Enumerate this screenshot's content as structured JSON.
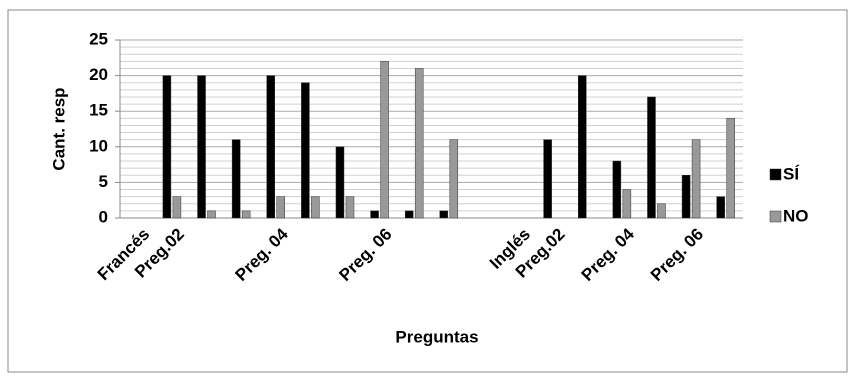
{
  "chart_data": {
    "type": "bar",
    "categories": [
      "Francés",
      "Preg.02",
      null,
      null,
      "Preg. 04",
      null,
      null,
      "Preg. 06",
      null,
      null,
      null,
      "Inglés",
      "Preg.02",
      null,
      "Preg. 04",
      null,
      "Preg. 06",
      null
    ],
    "series": [
      {
        "name": "SÍ",
        "color": "#000000",
        "values": [
          null,
          20,
          20,
          11,
          20,
          19,
          10,
          1,
          1,
          1,
          null,
          null,
          11,
          20,
          8,
          17,
          6,
          3
        ]
      },
      {
        "name": "NO",
        "color": "#999999",
        "values": [
          null,
          3,
          1,
          1,
          3,
          3,
          3,
          22,
          21,
          11,
          null,
          null,
          null,
          null,
          4,
          2,
          11,
          14
        ]
      }
    ],
    "ylim": [
      0,
      25
    ],
    "yticks": [
      0,
      5,
      10,
      15,
      20,
      25
    ],
    "y_minor_ticks": [
      1,
      2,
      3,
      4,
      6,
      7,
      8,
      9,
      11,
      12,
      13,
      14,
      16,
      17,
      18,
      19,
      21,
      22,
      23,
      24
    ],
    "grid": true,
    "xlabel": "Preguntas",
    "ylabel": "Cant. resp",
    "legend": "right"
  }
}
